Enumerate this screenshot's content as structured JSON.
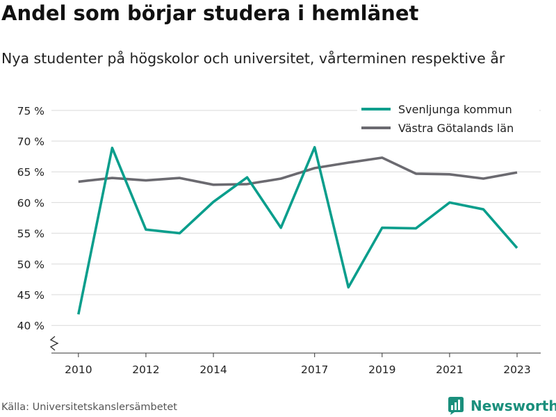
{
  "header": {
    "title": "Andel som börjar studera i hemlänet",
    "subtitle": "Nya studenter på högskolor och universitet, vårterminen respektive år"
  },
  "footer": {
    "source": "Källa: Universitetskanslersämbetet",
    "brand": "Newsworthy"
  },
  "colors": {
    "series_1": "#0a9e8c",
    "series_2": "#6b6a70",
    "grid": "#d9d9d9",
    "axis": "#333333",
    "brand": "#1a8f7c"
  },
  "icons": {
    "brand_logo": "bar-chart-logo-icon",
    "axis_break": "axis-break-zigzag-icon"
  },
  "chart_data": {
    "type": "line",
    "x": [
      2010,
      2011,
      2012,
      2013,
      2014,
      2015,
      2016,
      2017,
      2018,
      2019,
      2020,
      2021,
      2022,
      2023
    ],
    "x_tick_values": [
      2010,
      2012,
      2014,
      2017,
      2019,
      2021,
      2023
    ],
    "x_tick_labels": [
      "2010",
      "2012",
      "2014",
      "2017",
      "2019",
      "2021",
      "2023"
    ],
    "y_tick_values": [
      40,
      45,
      50,
      55,
      60,
      65,
      70,
      75
    ],
    "y_tick_labels": [
      "40 %",
      "45 %",
      "50 %",
      "55 %",
      "60 %",
      "65 %",
      "70 %",
      "75 %"
    ],
    "xlim": [
      2009.2,
      2023.7
    ],
    "ylim": [
      35.5,
      76
    ],
    "y_axis_break": true,
    "grid": true,
    "legend_position": "top-right",
    "series": [
      {
        "name": "Svenljunga kommun",
        "color": "#0a9e8c",
        "values": [
          41.8,
          68.9,
          55.6,
          55.0,
          60.1,
          64.1,
          55.9,
          69.0,
          46.2,
          55.9,
          55.8,
          60.0,
          58.9,
          52.6
        ]
      },
      {
        "name": "Västra Götalands län",
        "color": "#6b6a70",
        "values": [
          63.4,
          64.0,
          63.6,
          64.0,
          62.9,
          63.0,
          63.9,
          65.6,
          66.5,
          67.3,
          64.7,
          64.6,
          63.9,
          64.9
        ]
      }
    ]
  }
}
